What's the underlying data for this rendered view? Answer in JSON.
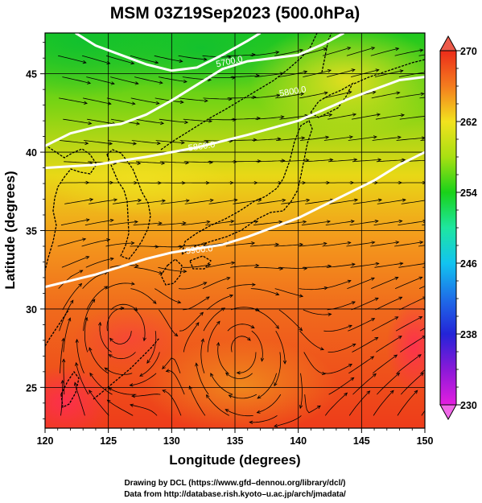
{
  "title": "MSM 03Z19Sep2023 (500.0hPa)",
  "xlabel": "Longitude (degrees)",
  "ylabel": "Latitude  (degrees)",
  "credits": [
    "Drawing by DCL (https://www.gfd–dennou.org/library/dcl/)",
    "Data from http://database.rish.kyoto–u.ac.jp/arch/jmadata/"
  ],
  "chart_data": {
    "type": "heatmap",
    "description_fields": "temperature shading (K) with white geopotential height contours (m) and wind streamlines",
    "xlim": [
      120,
      150
    ],
    "ylim": [
      22.4,
      47.6
    ],
    "x_ticks": [
      120,
      125,
      130,
      135,
      140,
      145,
      150
    ],
    "y_ticks": [
      25,
      30,
      35,
      40,
      45
    ],
    "colorbar": {
      "range": [
        230,
        270
      ],
      "ticks": [
        230,
        238,
        246,
        254,
        262,
        270
      ],
      "colors": [
        [
          230,
          "#e41ee0"
        ],
        [
          234,
          "#8a19d8"
        ],
        [
          238,
          "#2424d8"
        ],
        [
          242,
          "#1e6ee8"
        ],
        [
          246,
          "#12c4f0"
        ],
        [
          250,
          "#1ee6a0"
        ],
        [
          254,
          "#19d219"
        ],
        [
          258,
          "#a8e012"
        ],
        [
          262,
          "#f2e21e"
        ],
        [
          266,
          "#f47c1e"
        ],
        [
          270,
          "#ec2c1a"
        ]
      ]
    },
    "contours": [
      {
        "label": "5700.0",
        "points": [
          [
            122.4,
            47.6
          ],
          [
            124,
            46.8
          ],
          [
            126,
            46.2
          ],
          [
            128,
            45.6
          ],
          [
            130,
            45.2
          ],
          [
            132,
            45.4
          ],
          [
            134,
            46.2
          ],
          [
            136,
            47.1
          ],
          [
            137,
            47.6
          ]
        ]
      },
      {
        "label": "5800.0",
        "points": [
          [
            120,
            40.4
          ],
          [
            122,
            41.2
          ],
          [
            124,
            41.6
          ],
          [
            126,
            41.8
          ],
          [
            128,
            42.4
          ],
          [
            130,
            43.3
          ],
          [
            132,
            44.3
          ],
          [
            134,
            45.3
          ],
          [
            136,
            45.8
          ],
          [
            138,
            46.0
          ],
          [
            140,
            46.2
          ],
          [
            142,
            46.9
          ],
          [
            143.6,
            47.6
          ]
        ]
      },
      {
        "label": "5860.0",
        "points": [
          [
            120,
            39.0
          ],
          [
            124,
            39.2
          ],
          [
            128,
            39.7
          ],
          [
            132,
            40.3
          ],
          [
            136,
            41.1
          ],
          [
            140,
            42.0
          ],
          [
            144,
            43.4
          ],
          [
            148,
            44.6
          ],
          [
            150,
            44.8
          ]
        ]
      },
      {
        "label": "5900.0",
        "points": [
          [
            120,
            31.4
          ],
          [
            124,
            32.2
          ],
          [
            128,
            33.2
          ],
          [
            130,
            33.6
          ],
          [
            134,
            34.1
          ],
          [
            136,
            34.6
          ],
          [
            140,
            35.8
          ],
          [
            142,
            36.6
          ],
          [
            146,
            38.2
          ],
          [
            148,
            39.2
          ],
          [
            150,
            40.0
          ]
        ]
      }
    ],
    "contour_labels": [
      {
        "text": "5700.0",
        "lon": 134.6,
        "lat": 45.6,
        "angle": -12
      },
      {
        "text": "5800.0",
        "lon": 139.6,
        "lat": 43.7,
        "angle": -10
      },
      {
        "text": "5860.0",
        "lon": 132.4,
        "lat": 40.2,
        "angle": -8
      },
      {
        "text": "5900.0",
        "lon": 132.2,
        "lat": 33.6,
        "angle": -6
      }
    ],
    "vortices": [
      {
        "lon": 135.4,
        "lat": 27.4,
        "sense": "cw"
      },
      {
        "lon": 126.0,
        "lat": 28.8,
        "sense": "cw"
      }
    ]
  }
}
